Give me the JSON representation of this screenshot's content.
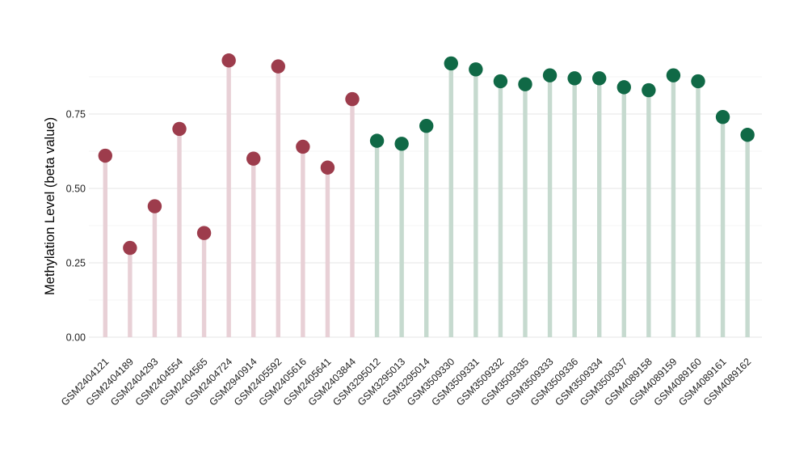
{
  "chart_data": {
    "type": "lollipop",
    "title": "",
    "xlabel": "",
    "ylabel": "Methylation Level (beta value)",
    "categories": [
      "GSM2404121",
      "GSM2404189",
      "GSM2404293",
      "GSM2404554",
      "GSM2404565",
      "GSM2404724",
      "GSM2940914",
      "GSM2405592",
      "GSM2405616",
      "GSM2405641",
      "GSM2403844",
      "GSM3295012",
      "GSM3295013",
      "GSM3295014",
      "GSM3509330",
      "GSM3509331",
      "GSM3509332",
      "GSM3509335",
      "GSM3509333",
      "GSM3509336",
      "GSM3509334",
      "GSM3509337",
      "GSM4089158",
      "GSM4089159",
      "GSM4089160",
      "GSM4089161",
      "GSM4089162"
    ],
    "values": [
      0.61,
      0.3,
      0.44,
      0.7,
      0.35,
      0.93,
      0.6,
      0.91,
      0.64,
      0.57,
      0.8,
      0.66,
      0.65,
      0.71,
      0.92,
      0.9,
      0.86,
      0.85,
      0.88,
      0.87,
      0.87,
      0.84,
      0.83,
      0.88,
      0.86,
      0.74,
      0.68
    ],
    "point_groups": [
      "maroon",
      "maroon",
      "maroon",
      "maroon",
      "maroon",
      "maroon",
      "maroon",
      "maroon",
      "maroon",
      "maroon",
      "maroon",
      "green",
      "green",
      "green",
      "green",
      "green",
      "green",
      "green",
      "green",
      "green",
      "green",
      "green",
      "green",
      "green",
      "green",
      "green",
      "green"
    ],
    "groups": {
      "maroon": {
        "dot_color": "#9d3c4c",
        "stem_color": "#e8d0d6"
      },
      "green": {
        "dot_color": "#106946",
        "stem_color": "#c6dacf"
      }
    },
    "ylim": [
      0,
      0.96
    ],
    "yticks": [
      0,
      0.25,
      0.5,
      0.75
    ],
    "ytick_labels": [
      "0.00",
      "0.25",
      "0.50",
      "0.75"
    ],
    "minor_gridlines": [
      0.125,
      0.375,
      0.625,
      0.875
    ],
    "grid": true,
    "legend": false,
    "colors": {
      "background": "#ffffff",
      "grid_major": "#e9e9e9",
      "grid_minor": "#f4f4f4",
      "axis_text": "#1f1f1f",
      "axis_title": "#000000"
    }
  }
}
